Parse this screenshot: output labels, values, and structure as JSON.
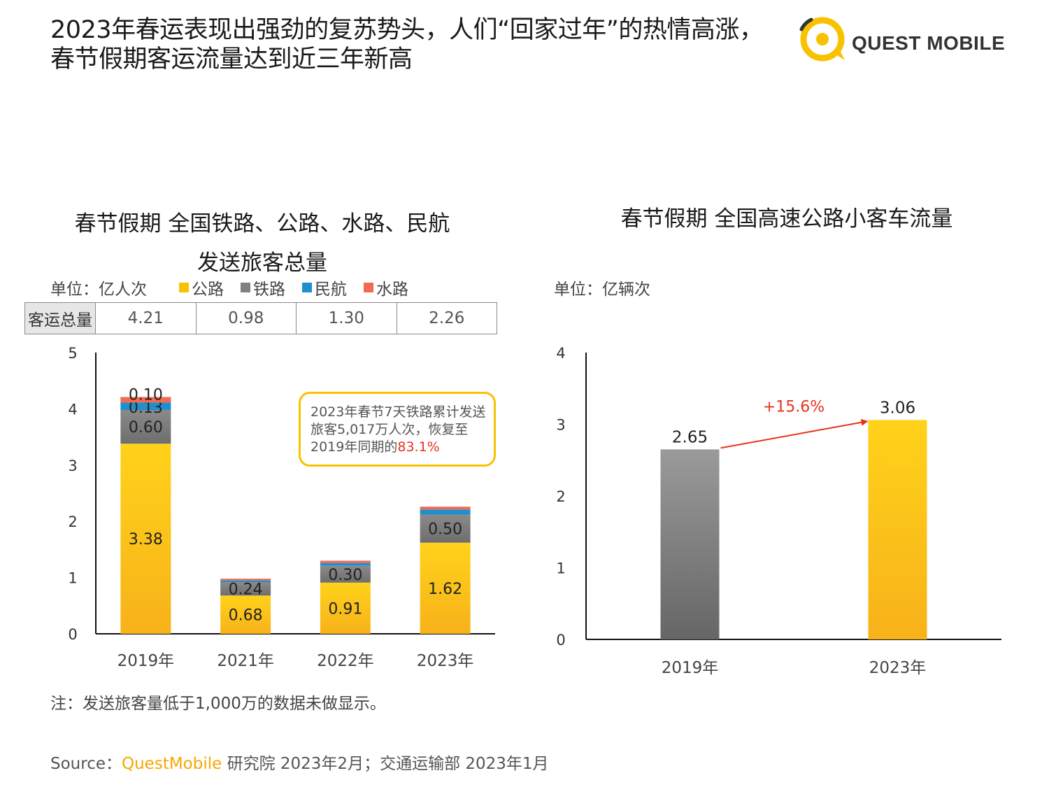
{
  "header": {
    "title_line1": "2023年春运表现出强劲的复苏势头，人们“回家过年”的热情高涨，",
    "title_line2": "春节假期客运流量达到近三年新高",
    "brand": "QUEST MOBILE",
    "brand_color": "#f9c200"
  },
  "left_chart": {
    "title_line1": "春节假期 全国铁路、公路、水路、民航",
    "title_line2": "发送旅客总量",
    "unit": "单位：亿人次",
    "table_header": "客运总量",
    "callout": {
      "text_main": "2023年春节7天铁路累计发送旅客5,017万人次，恢复至2019年同期的",
      "text_highlight": "83.1%"
    }
  },
  "right_chart": {
    "title": "春节假期 全国高速公路小客车流量",
    "unit": "单位：亿辆次"
  },
  "note": "注：发送旅客量低于1,000万的数据未做显示。",
  "source": {
    "prefix": "Source：",
    "org": "QuestMobile",
    "rest": " 研究院 2023年2月；交通运输部 2023年1月"
  },
  "chart_data": [
    {
      "type": "bar",
      "stacked": true,
      "categories": [
        "2019年",
        "2021年",
        "2022年",
        "2023年"
      ],
      "totals": [
        "4.21",
        "0.98",
        "1.30",
        "2.26"
      ],
      "series": [
        {
          "name": "公路",
          "color": "#f9c200",
          "values": [
            3.38,
            0.68,
            0.91,
            1.62
          ],
          "labels": [
            "3.38",
            "0.68",
            "0.91",
            "1.62"
          ]
        },
        {
          "name": "铁路",
          "color": "#808080",
          "values": [
            0.6,
            0.24,
            0.3,
            0.5
          ],
          "labels": [
            "0.60",
            "0.24",
            "0.30",
            "0.50"
          ]
        },
        {
          "name": "民航",
          "color": "#1e90d0",
          "values": [
            0.13,
            0.03,
            0.05,
            0.09
          ],
          "labels": [
            "0.13",
            "",
            "",
            ""
          ]
        },
        {
          "name": "水路",
          "color": "#f26a4f",
          "values": [
            0.1,
            0.03,
            0.04,
            0.05
          ],
          "labels": [
            "0.10",
            "",
            "",
            ""
          ]
        }
      ],
      "ylim": [
        0,
        5
      ],
      "yticks": [
        "0",
        "1",
        "2",
        "3",
        "4",
        "5"
      ],
      "legend": "top"
    },
    {
      "type": "bar",
      "categories": [
        "2019年",
        "2023年"
      ],
      "values": [
        2.65,
        3.06
      ],
      "labels": [
        "2.65",
        "3.06"
      ],
      "colors": [
        "#808080",
        "#f9c200"
      ],
      "annotation": "+15.6%",
      "annotation_color": "#e8321e",
      "ylim": [
        0,
        4
      ],
      "yticks": [
        "0",
        "1",
        "2",
        "3",
        "4"
      ]
    }
  ]
}
